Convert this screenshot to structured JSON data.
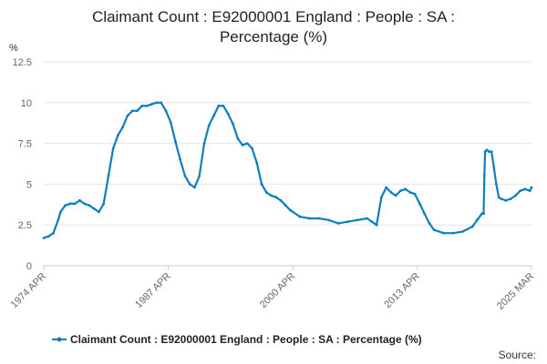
{
  "chart_data": {
    "type": "line",
    "title": "Claimant Count : E92000001 England : People : SA : Percentage (%)",
    "title_lines": [
      "Claimant Count : E92000001 England : People : SA :",
      "Percentage (%)"
    ],
    "ylabel": "%",
    "xlabel": "",
    "ylim": [
      0,
      12.5
    ],
    "y_ticks": [
      0,
      2.5,
      5,
      7.5,
      10,
      12.5
    ],
    "y_tick_labels": [
      "0",
      "2.5",
      "5",
      "7.5",
      "10",
      "12.5"
    ],
    "x_tick_labels": [
      "1974 APR",
      "1987 APR",
      "2000 APR",
      "2013 APR",
      "2025 MAR"
    ],
    "x_tick_years": [
      1974.25,
      1987.25,
      2000.25,
      2013.25,
      2025.17
    ],
    "grid": "horizontal",
    "legend_position": "bottom",
    "series": [
      {
        "name": "Claimant Count : E92000001 England : People : SA : Percentage (%)",
        "color": "#0f7ebf",
        "x": [
          1974.25,
          1974.75,
          1975.25,
          1975.75,
          1976.0,
          1976.5,
          1977.0,
          1977.5,
          1978.0,
          1978.5,
          1979.0,
          1979.5,
          1980.0,
          1980.5,
          1981.0,
          1981.5,
          1982.0,
          1982.5,
          1983.0,
          1983.5,
          1984.0,
          1984.5,
          1985.0,
          1985.5,
          1986.0,
          1986.5,
          1987.0,
          1987.5,
          1988.0,
          1988.5,
          1989.0,
          1989.5,
          1990.0,
          1990.5,
          1991.0,
          1991.5,
          1992.0,
          1992.5,
          1993.0,
          1993.5,
          1994.0,
          1994.5,
          1995.0,
          1995.5,
          1996.0,
          1996.5,
          1997.0,
          1997.5,
          1998.0,
          1998.5,
          1999.0,
          1999.5,
          2000.0,
          2001.0,
          2002.0,
          2003.0,
          2004.0,
          2005.0,
          2006.0,
          2007.0,
          2008.0,
          2008.5,
          2009.0,
          2009.5,
          2010.0,
          2010.5,
          2011.0,
          2011.5,
          2012.0,
          2012.5,
          2013.0,
          2013.5,
          2014.0,
          2014.5,
          2015.0,
          2016.0,
          2017.0,
          2018.0,
          2019.0,
          2019.5,
          2020.0,
          2020.17,
          2020.25,
          2020.33,
          2020.5,
          2020.75,
          2021.0,
          2021.25,
          2021.5,
          2021.75,
          2022.0,
          2022.5,
          2023.0,
          2023.5,
          2024.0,
          2024.5,
          2025.0,
          2025.17
        ],
        "y": [
          1.7,
          1.8,
          2.0,
          2.8,
          3.3,
          3.7,
          3.8,
          3.8,
          4.0,
          3.8,
          3.7,
          3.5,
          3.3,
          3.8,
          5.5,
          7.2,
          8.0,
          8.5,
          9.2,
          9.5,
          9.5,
          9.8,
          9.8,
          9.9,
          10.0,
          10.0,
          9.5,
          8.8,
          7.6,
          6.5,
          5.5,
          5.0,
          4.8,
          5.5,
          7.5,
          8.6,
          9.2,
          9.8,
          9.8,
          9.3,
          8.7,
          7.8,
          7.4,
          7.5,
          7.2,
          6.3,
          5.0,
          4.5,
          4.3,
          4.2,
          4.0,
          3.7,
          3.4,
          3.0,
          2.9,
          2.9,
          2.8,
          2.6,
          2.7,
          2.8,
          2.9,
          2.7,
          2.5,
          4.2,
          4.8,
          4.5,
          4.3,
          4.6,
          4.7,
          4.5,
          4.4,
          3.8,
          3.2,
          2.6,
          2.2,
          2.0,
          2.0,
          2.1,
          2.4,
          2.8,
          3.2,
          3.2,
          5.5,
          7.0,
          7.1,
          7.0,
          7.0,
          6.0,
          5.0,
          4.2,
          4.1,
          4.0,
          4.1,
          4.3,
          4.6,
          4.7,
          4.6,
          4.8
        ]
      }
    ]
  },
  "source_label": "Source:"
}
